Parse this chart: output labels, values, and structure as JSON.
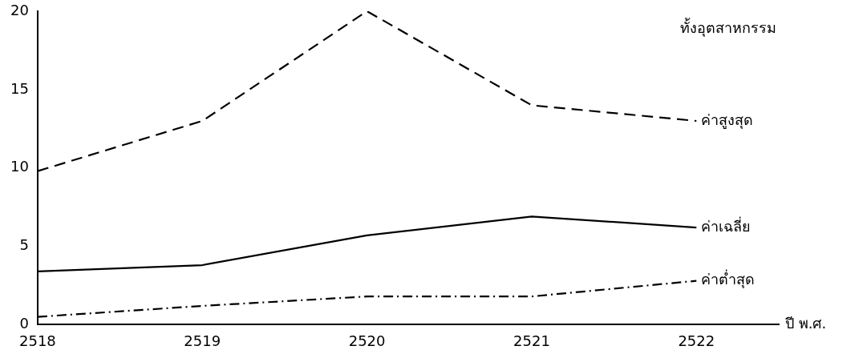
{
  "chart_data": {
    "type": "line",
    "title": "ทั้งอุตสาหกรรม",
    "xlabel": "ปี พ.ศ.",
    "x": [
      2518,
      2519,
      2520,
      2521,
      2522
    ],
    "series": [
      {
        "name": "ค่าสูงสุด",
        "color": "#000000",
        "line_style": "dashed",
        "values": [
          9.8,
          13,
          20,
          14,
          13
        ]
      },
      {
        "name": "ค่าเฉลี่ย",
        "color": "#000000",
        "line_style": "solid",
        "values": [
          3.4,
          3.8,
          5.7,
          6.9,
          6.2
        ]
      },
      {
        "name": "ค่าต่ำสุด",
        "color": "#000000",
        "line_style": "dotted",
        "values": [
          0.5,
          1.2,
          1.8,
          1.8,
          2.8
        ]
      }
    ],
    "xlim": [
      2518,
      2522.5
    ],
    "xticks": [
      2518,
      2519,
      2520,
      2521,
      2522
    ],
    "ylim": [
      0,
      20
    ],
    "yticks": [
      0,
      5,
      10,
      15,
      20
    ],
    "grid": false,
    "legend": false,
    "marker": "none"
  }
}
